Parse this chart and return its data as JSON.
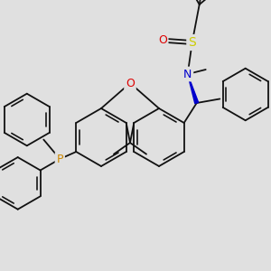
{
  "bg_color": "#e0e0e0",
  "line_color": "#111111",
  "line_width": 1.3,
  "figsize": [
    3.0,
    3.0
  ],
  "dpi": 100,
  "xlim": [
    0,
    300
  ],
  "ylim": [
    0,
    300
  ],
  "colors": {
    "O": "#dd0000",
    "S": "#cccc00",
    "N": "#0000cc",
    "P": "#cc8800",
    "C": "#111111",
    "bond": "#111111",
    "wedge": "#0000cc"
  }
}
